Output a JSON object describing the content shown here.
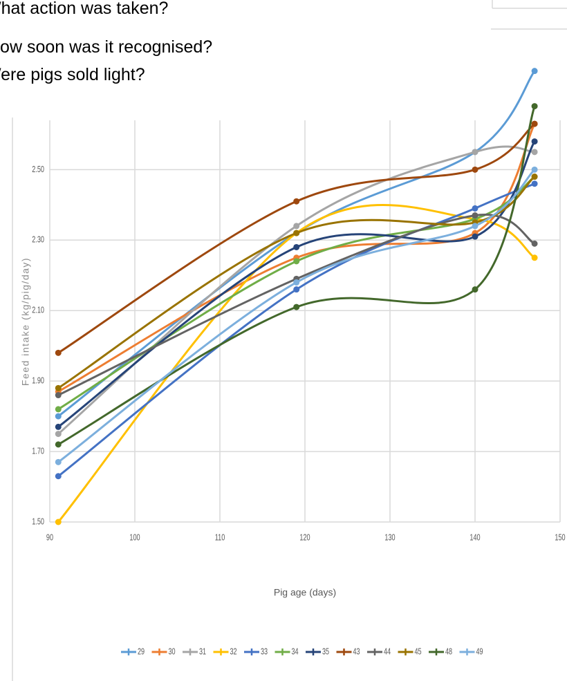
{
  "chart_data": {
    "type": "line",
    "questions": [
      "What action was taken?",
      "How soon was it recognised?",
      "Were pigs sold light?"
    ],
    "xlabel": "Pig age (days)",
    "ylabel": "Feed intake (kg/pig/day)",
    "x": [
      91,
      119,
      140,
      147
    ],
    "xlim": [
      90,
      150
    ],
    "xticks": [
      90,
      100,
      110,
      120,
      130,
      140,
      150
    ],
    "ylim": [
      1.5,
      2.64
    ],
    "yticks": [
      {
        "value": 1.5,
        "label": "1.50"
      },
      {
        "value": 1.7,
        "label": "1.70"
      },
      {
        "value": 1.9,
        "label": "1.90"
      },
      {
        "value": 2.1,
        "label": "2.10"
      },
      {
        "value": 2.3,
        "label": "2.30"
      },
      {
        "value": 2.5,
        "label": "2.50"
      }
    ],
    "grid": true,
    "legend": "bottom",
    "series": [
      {
        "name": "29",
        "color": "#5b9bd5",
        "values": [
          1.8,
          2.32,
          2.55,
          2.78
        ]
      },
      {
        "name": "30",
        "color": "#ed7d31",
        "values": [
          1.87,
          2.25,
          2.32,
          2.63
        ]
      },
      {
        "name": "31",
        "color": "#a5a5a5",
        "values": [
          1.75,
          2.34,
          2.55,
          2.55
        ]
      },
      {
        "name": "32",
        "color": "#ffc000",
        "values": [
          1.5,
          2.32,
          2.36,
          2.25
        ]
      },
      {
        "name": "33",
        "color": "#4472c4",
        "values": [
          1.63,
          2.16,
          2.39,
          2.46
        ]
      },
      {
        "name": "34",
        "color": "#70ad47",
        "values": [
          1.82,
          2.24,
          2.36,
          2.48
        ]
      },
      {
        "name": "35",
        "color": "#264478",
        "values": [
          1.77,
          2.28,
          2.31,
          2.58
        ]
      },
      {
        "name": "43",
        "color": "#9e480e",
        "values": [
          1.98,
          2.41,
          2.5,
          2.63
        ]
      },
      {
        "name": "44",
        "color": "#636363",
        "values": [
          1.86,
          2.19,
          2.37,
          2.29
        ]
      },
      {
        "name": "45",
        "color": "#997300",
        "values": [
          1.88,
          2.32,
          2.35,
          2.48
        ]
      },
      {
        "name": "48",
        "color": "#43682b",
        "values": [
          1.72,
          2.11,
          2.16,
          2.68
        ]
      },
      {
        "name": "49",
        "color": "#7cafdd",
        "values": [
          1.67,
          2.18,
          2.34,
          2.5
        ]
      }
    ]
  }
}
